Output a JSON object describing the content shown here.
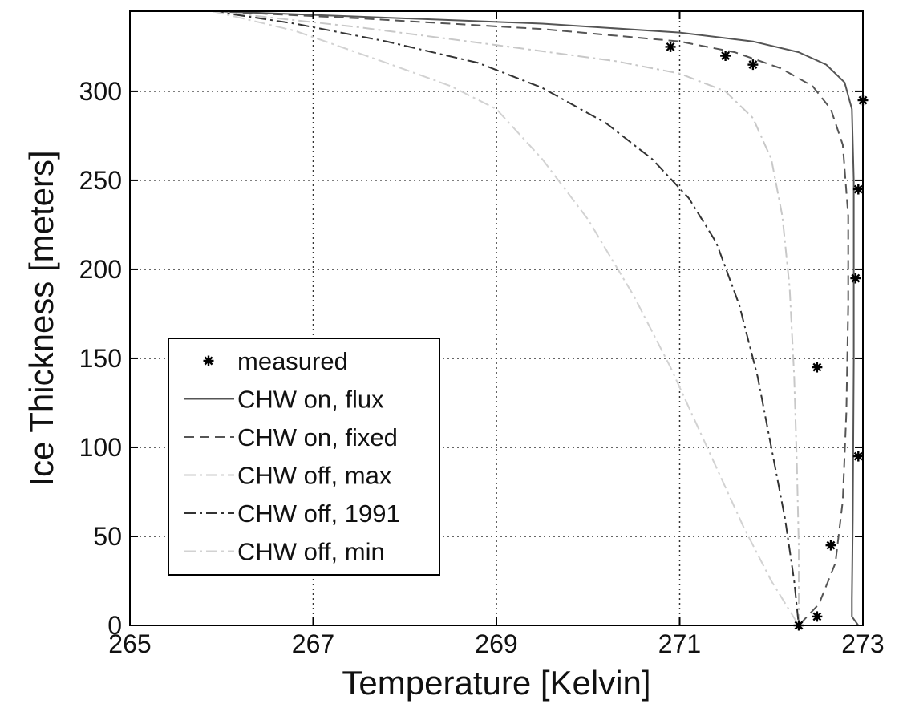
{
  "chart_data": {
    "type": "line",
    "title": "",
    "xlabel": "Temperature [Kelvin]",
    "ylabel": "Ice Thickness [meters]",
    "xlim": [
      265,
      273
    ],
    "ylim": [
      0,
      345
    ],
    "xticks": [
      265,
      267,
      269,
      271,
      273
    ],
    "xtick_labels": [
      "265",
      "267",
      "269",
      "271",
      "273"
    ],
    "yticks": [
      0,
      50,
      100,
      150,
      200,
      250,
      300
    ],
    "ytick_labels": [
      "0",
      "50",
      "100",
      "150",
      "200",
      "250",
      "300"
    ],
    "grid": true,
    "legend_position": "lower-left",
    "series": [
      {
        "name": "measured",
        "kind": "marker",
        "marker": "asterisk",
        "color": "#000000",
        "points": [
          [
            270.9,
            325
          ],
          [
            271.5,
            320
          ],
          [
            271.8,
            315
          ],
          [
            273.0,
            295
          ],
          [
            272.95,
            245
          ],
          [
            272.92,
            195
          ],
          [
            272.5,
            145
          ],
          [
            272.95,
            95
          ],
          [
            272.65,
            45
          ],
          [
            272.5,
            5
          ],
          [
            272.3,
            0
          ]
        ]
      },
      {
        "name": "CHW on, flux",
        "kind": "line",
        "dash": "solid",
        "color": "#555555",
        "points": [
          [
            265.9,
            345
          ],
          [
            267.5,
            342
          ],
          [
            269.5,
            338
          ],
          [
            271.0,
            333
          ],
          [
            271.8,
            328
          ],
          [
            272.3,
            322
          ],
          [
            272.6,
            315
          ],
          [
            272.8,
            305
          ],
          [
            272.88,
            290
          ],
          [
            272.9,
            250
          ],
          [
            272.9,
            150
          ],
          [
            272.89,
            60
          ],
          [
            272.88,
            15
          ],
          [
            272.88,
            5
          ],
          [
            272.95,
            0
          ]
        ]
      },
      {
        "name": "CHW on, fixed",
        "kind": "line",
        "dash": "dashed",
        "color": "#555555",
        "points": [
          [
            265.9,
            345
          ],
          [
            267.5,
            341
          ],
          [
            269.5,
            335
          ],
          [
            271.0,
            328
          ],
          [
            271.6,
            322
          ],
          [
            272.1,
            313
          ],
          [
            272.45,
            303
          ],
          [
            272.65,
            290
          ],
          [
            272.78,
            270
          ],
          [
            272.84,
            230
          ],
          [
            272.84,
            180
          ],
          [
            272.82,
            120
          ],
          [
            272.78,
            70
          ],
          [
            272.7,
            35
          ],
          [
            272.52,
            12
          ],
          [
            272.3,
            0
          ]
        ]
      },
      {
        "name": "CHW off, max",
        "kind": "line",
        "dash": "dashdot",
        "color": "#c8c8c8",
        "points": [
          [
            265.9,
            345
          ],
          [
            267.5,
            336
          ],
          [
            269.0,
            326
          ],
          [
            270.3,
            317
          ],
          [
            271.0,
            310
          ],
          [
            271.5,
            300
          ],
          [
            271.8,
            285
          ],
          [
            272.0,
            262
          ],
          [
            272.12,
            230
          ],
          [
            272.2,
            190
          ],
          [
            272.25,
            140
          ],
          [
            272.28,
            90
          ],
          [
            272.3,
            45
          ],
          [
            272.3,
            10
          ],
          [
            272.3,
            0
          ]
        ]
      },
      {
        "name": "CHW off, 1991",
        "kind": "line",
        "dash": "dashdot",
        "color": "#333333",
        "points": [
          [
            265.9,
            345
          ],
          [
            266.8,
            338
          ],
          [
            267.8,
            328
          ],
          [
            268.8,
            316
          ],
          [
            269.5,
            302
          ],
          [
            270.2,
            282
          ],
          [
            270.7,
            262
          ],
          [
            271.1,
            240
          ],
          [
            271.4,
            215
          ],
          [
            271.65,
            180
          ],
          [
            271.85,
            140
          ],
          [
            272.0,
            100
          ],
          [
            272.15,
            60
          ],
          [
            272.25,
            25
          ],
          [
            272.3,
            0
          ]
        ]
      },
      {
        "name": "CHW off, min",
        "kind": "line",
        "dash": "dashdot",
        "color": "#d2d2d2",
        "points": [
          [
            265.9,
            345
          ],
          [
            266.8,
            334
          ],
          [
            267.8,
            316
          ],
          [
            268.5,
            303
          ],
          [
            269.0,
            290
          ],
          [
            269.5,
            262
          ],
          [
            270.0,
            228
          ],
          [
            270.5,
            185
          ],
          [
            270.9,
            145
          ],
          [
            271.3,
            100
          ],
          [
            271.7,
            55
          ],
          [
            272.0,
            25
          ],
          [
            272.3,
            0
          ]
        ]
      }
    ]
  }
}
